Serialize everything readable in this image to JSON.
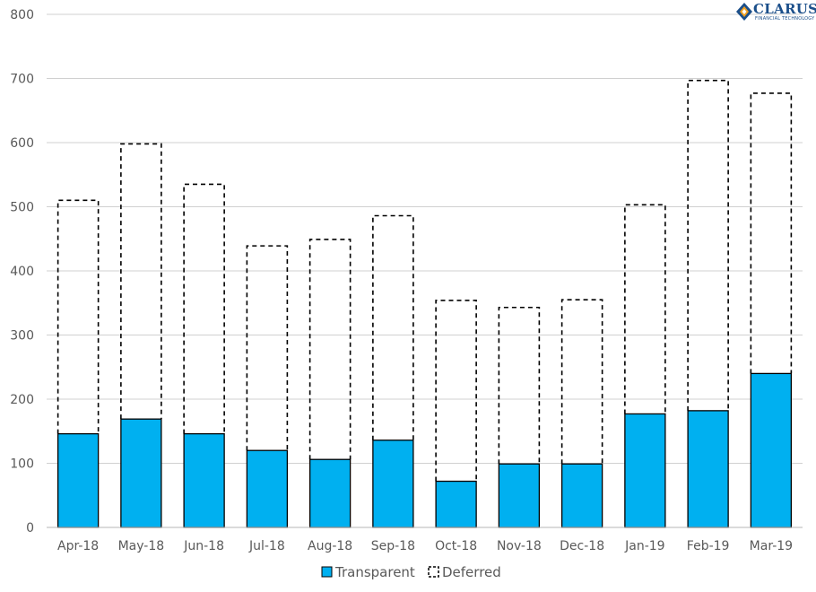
{
  "logo": {
    "name": "CLARUS",
    "tagline": "FINANCIAL TECHNOLOGY",
    "icon": "diamond-logo-icon",
    "colors": {
      "primary": "#1b4f8a",
      "accent": "#f0a020"
    }
  },
  "chart_data": {
    "type": "bar",
    "stacked": "overlay",
    "categories": [
      "Apr-18",
      "May-18",
      "Jun-18",
      "Jul-18",
      "Aug-18",
      "Sep-18",
      "Oct-18",
      "Nov-18",
      "Dec-18",
      "Jan-19",
      "Feb-19",
      "Mar-19"
    ],
    "series": [
      {
        "name": "Transparent",
        "style": "solid",
        "color": "#00b0f0",
        "values": [
          146,
          169,
          146,
          120,
          106,
          136,
          72,
          99,
          99,
          177,
          182,
          240
        ]
      },
      {
        "name": "Deferred",
        "style": "dashed-outline",
        "color": "#000000",
        "values": [
          510,
          598,
          535,
          439,
          449,
          486,
          354,
          343,
          355,
          503,
          697,
          677
        ]
      }
    ],
    "title": "",
    "xlabel": "",
    "ylabel": "",
    "ylim": [
      0,
      800
    ],
    "yticks": [
      0,
      100,
      200,
      300,
      400,
      500,
      600,
      700,
      800
    ],
    "grid": true,
    "legend": "bottom-center"
  }
}
